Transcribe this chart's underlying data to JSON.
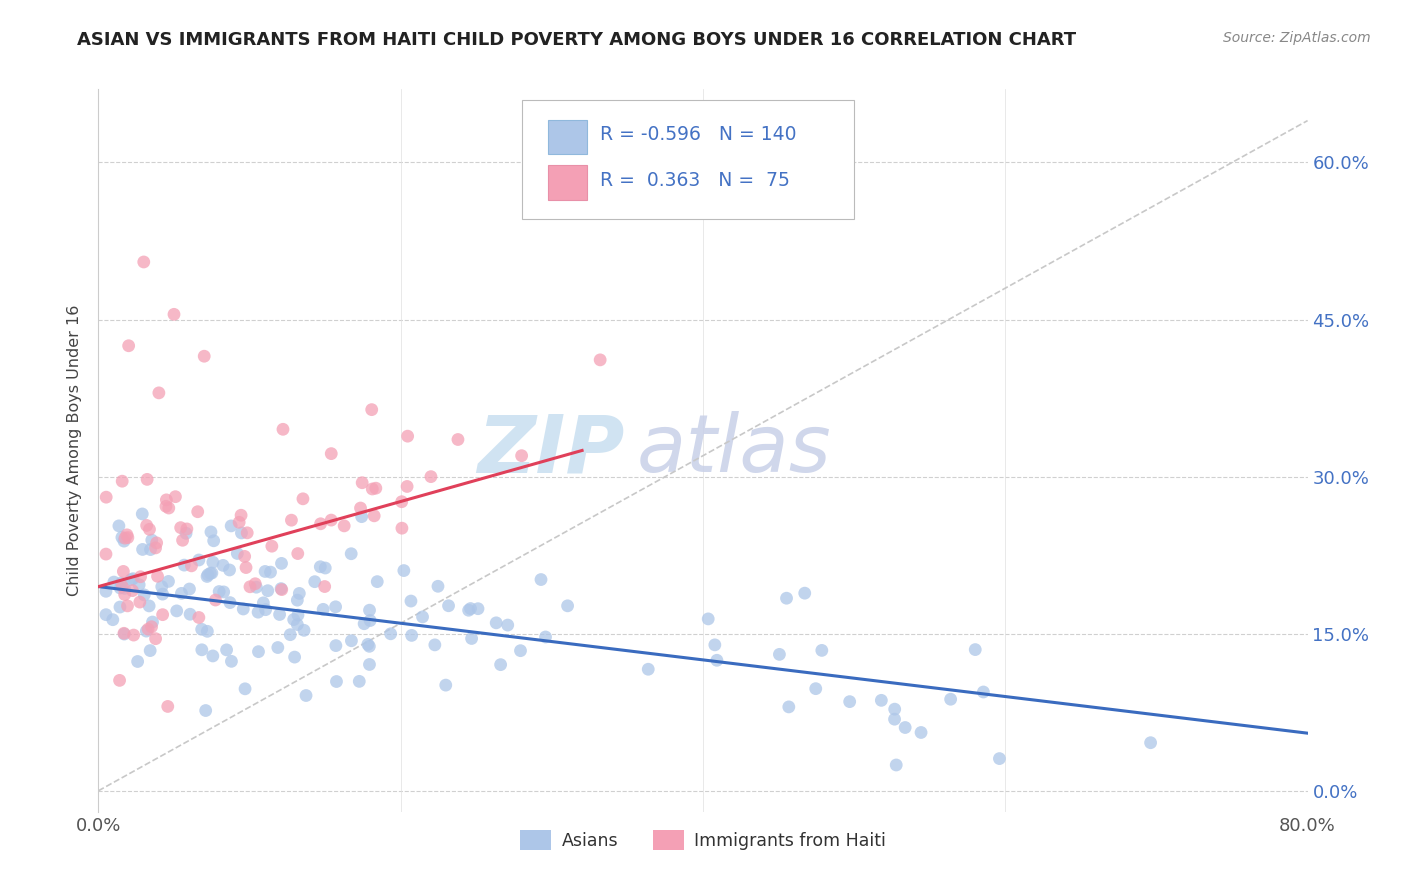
{
  "title": "ASIAN VS IMMIGRANTS FROM HAITI CHILD POVERTY AMONG BOYS UNDER 16 CORRELATION CHART",
  "source": "Source: ZipAtlas.com",
  "ylabel": "Child Poverty Among Boys Under 16",
  "yticks": [
    "0.0%",
    "15.0%",
    "30.0%",
    "45.0%",
    "60.0%"
  ],
  "ytick_vals": [
    0.0,
    0.15,
    0.3,
    0.45,
    0.6
  ],
  "xlim": [
    0.0,
    0.8
  ],
  "ylim": [
    -0.02,
    0.67
  ],
  "asian_color": "#adc6e8",
  "haiti_color": "#f4a0b5",
  "trend_asian_color": "#3a6bbf",
  "trend_haiti_color": "#e0405a",
  "trend_dashed_color": "#c8c8c8",
  "asian_trend_x0": 0.0,
  "asian_trend_y0": 0.195,
  "asian_trend_x1": 0.8,
  "asian_trend_y1": 0.055,
  "haiti_trend_x0": 0.0,
  "haiti_trend_y0": 0.195,
  "haiti_trend_x1": 0.32,
  "haiti_trend_y1": 0.325,
  "seed": 123
}
